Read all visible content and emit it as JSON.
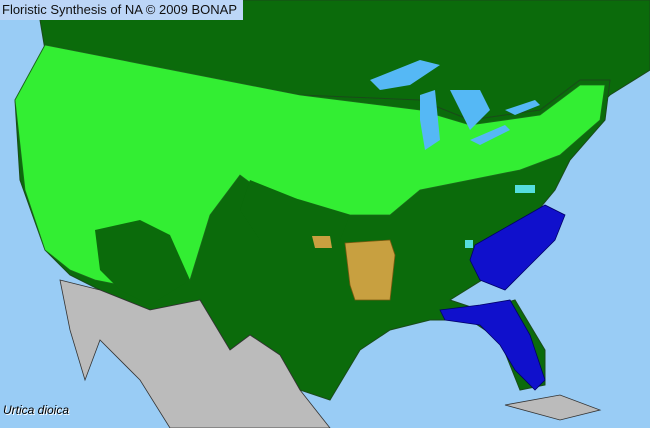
{
  "header": {
    "title": "Floristic Synthesis of NA © 2009 BONAP"
  },
  "map": {
    "species": "Urtica dioica",
    "colors": {
      "ocean": "#99ccf5",
      "native_present": "#0b6b0b",
      "present_county": "#33ee33",
      "state_present_county_blue": "#1010cc",
      "orange_state": "#c8a040",
      "cyan_county": "#55dddd",
      "outside_range": "#bbbbbb",
      "lakes": "#55b8f5"
    }
  }
}
